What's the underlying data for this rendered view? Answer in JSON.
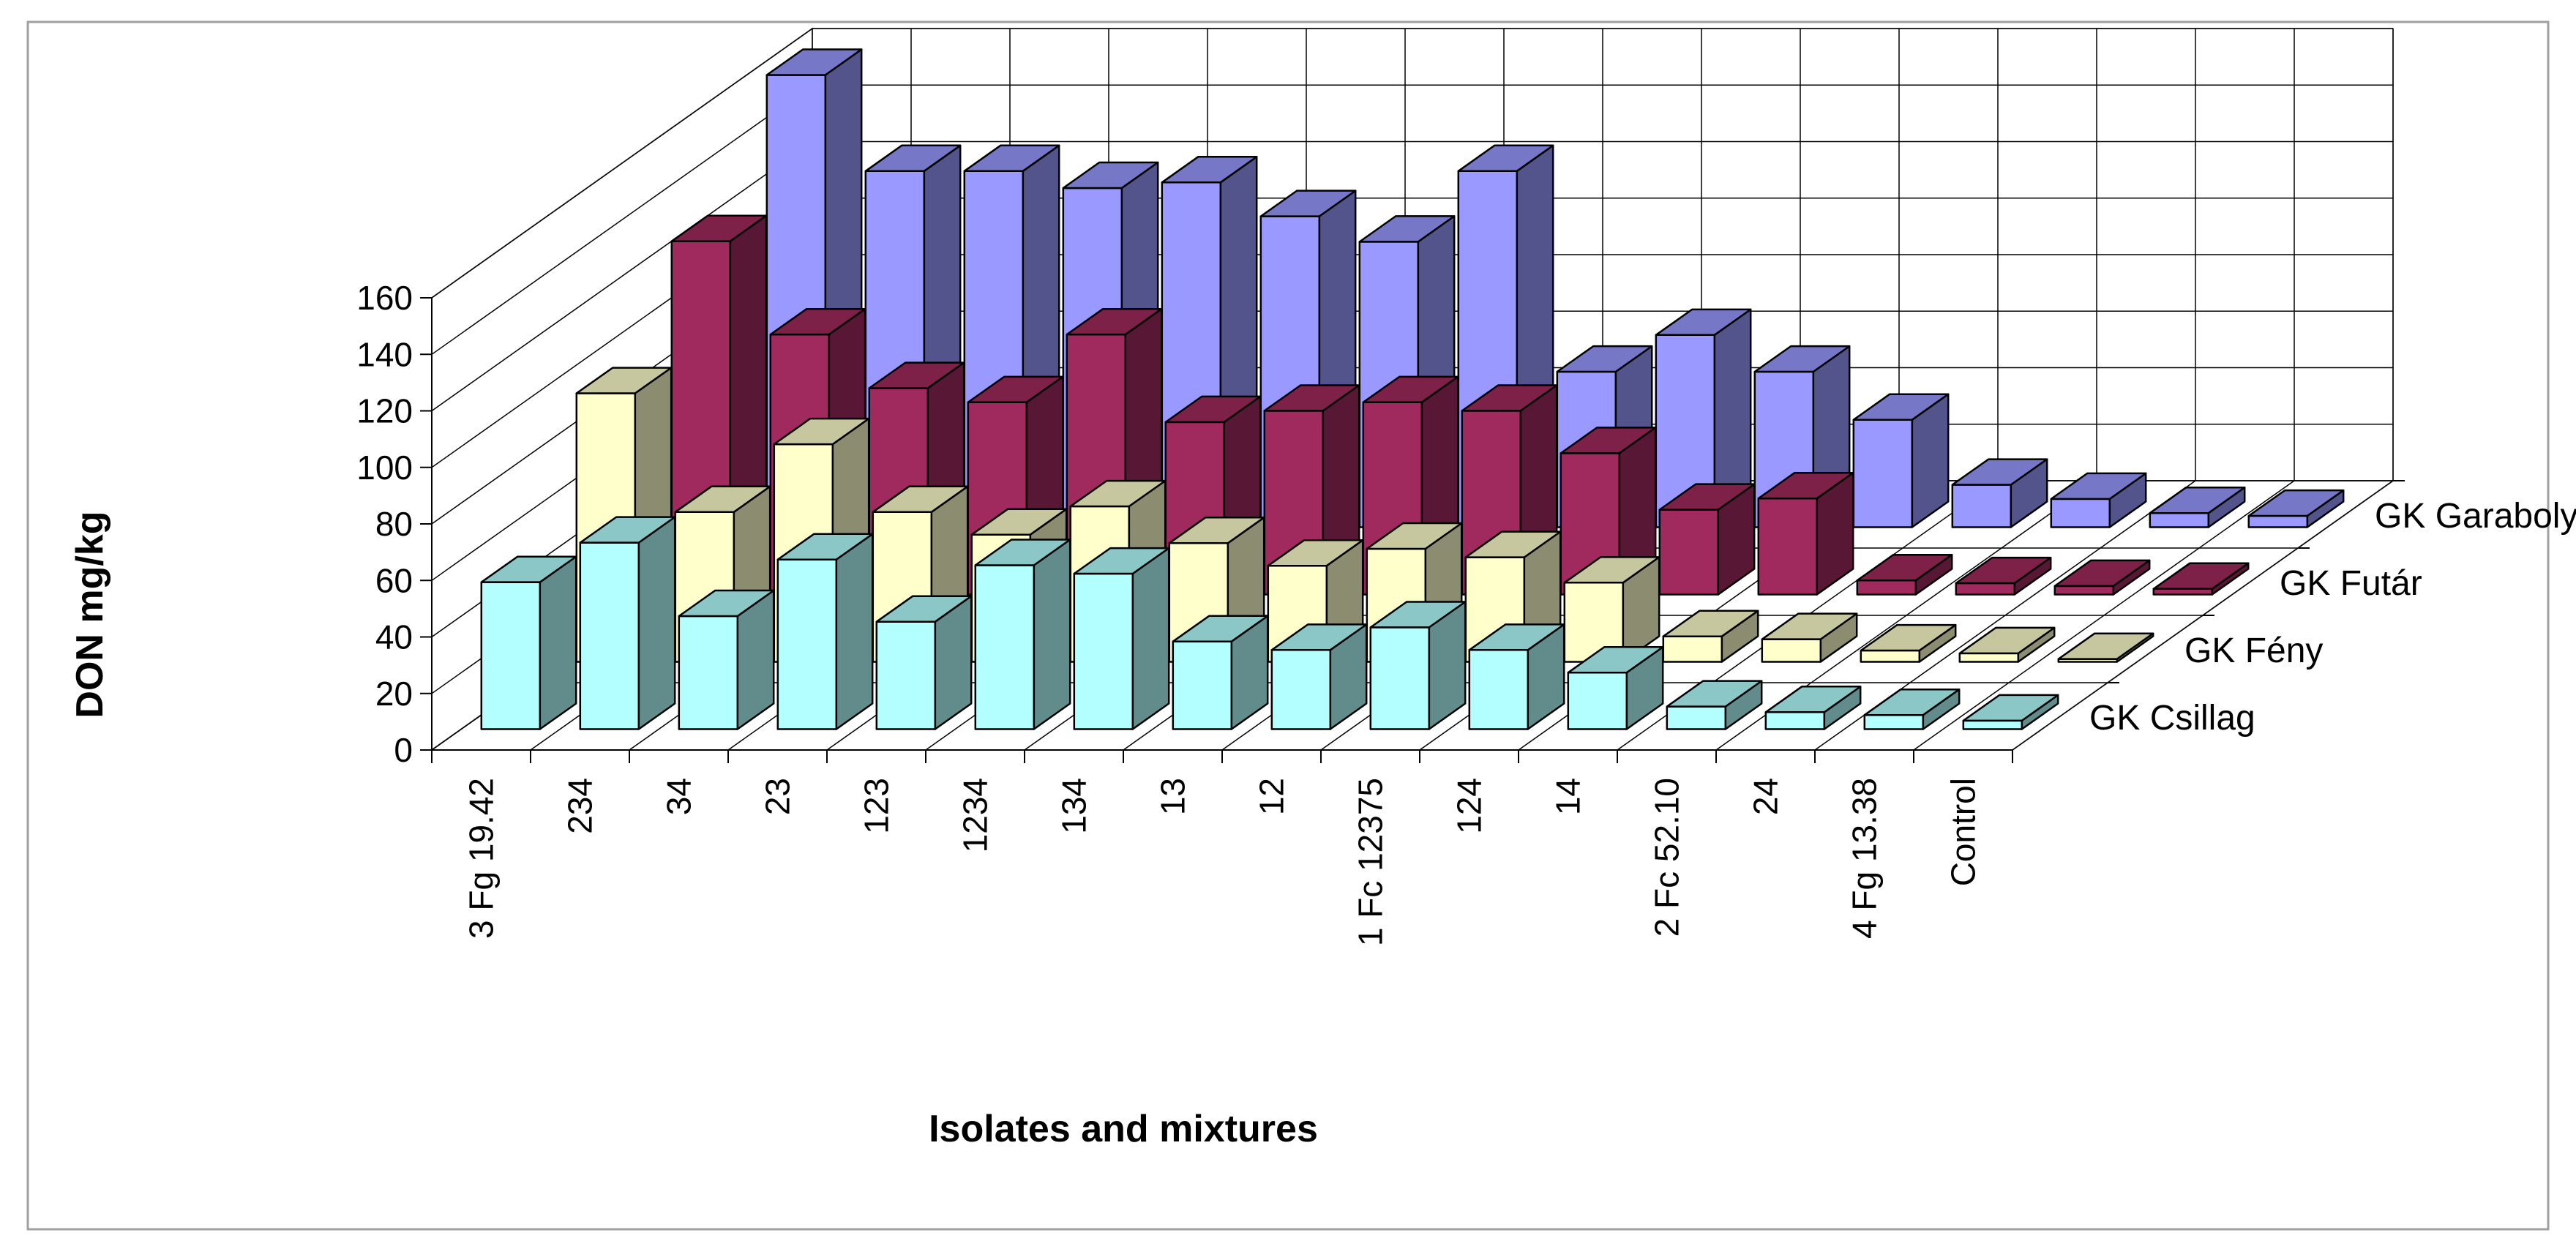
{
  "chart_data": {
    "type": "bar",
    "subtype": "3d-column",
    "title": "",
    "xlabel": "Isolates and mixtures",
    "ylabel": "DON mg/kg",
    "ylim": [
      0,
      160
    ],
    "yticks": [
      0,
      20,
      40,
      60,
      80,
      100,
      120,
      140,
      160
    ],
    "grid": true,
    "legend": "none (series labels on depth axis)",
    "categories": [
      "3 Fg 19.42",
      "234",
      "34",
      "23",
      "123",
      "1234",
      "134",
      "13",
      "12",
      "1 Fc 12375",
      "124",
      "14",
      "2 Fc 52.10",
      "24",
      "4 Fg 13.38",
      "Control"
    ],
    "series": [
      {
        "name": "GK Csillag",
        "color": "#b3ffff",
        "values": [
          52,
          66,
          40,
          60,
          38,
          58,
          55,
          31,
          28,
          36,
          28,
          20,
          8,
          6,
          5,
          3
        ]
      },
      {
        "name": "GK Fény",
        "color": "#ffffcc",
        "values": [
          95,
          53,
          77,
          53,
          45,
          55,
          42,
          34,
          40,
          37,
          28,
          9,
          8,
          4,
          3,
          1
        ]
      },
      {
        "name": "GK Futár",
        "color": "#a02a5e",
        "values": [
          125,
          92,
          73,
          68,
          92,
          61,
          65,
          68,
          65,
          50,
          30,
          34,
          5,
          4,
          3,
          2
        ]
      },
      {
        "name": "GK Garaboly",
        "color": "#9999ff",
        "values": [
          160,
          126,
          126,
          120,
          122,
          110,
          101,
          126,
          55,
          68,
          55,
          38,
          15,
          10,
          5,
          4
        ]
      }
    ]
  },
  "style": {
    "frame_color": "#a0a0a0",
    "grid_color": "#000000"
  }
}
